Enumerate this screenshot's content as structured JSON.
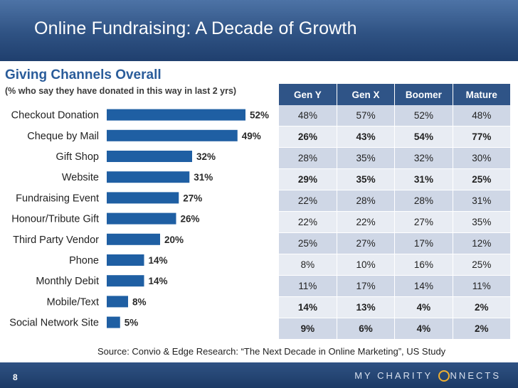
{
  "title": "Online Fundraising: A Decade of Growth",
  "subtitle": "Giving Channels Overall",
  "subnote": "(% who say they have donated in this way in last 2 yrs)",
  "source": "Source: Convio  & Edge Research: “The Next Decade in Online Marketing”, US Study",
  "page_number": "8",
  "logo": {
    "part1": "MY CHARITY",
    "part2": "NNECTS"
  },
  "colors": {
    "bar": "#1f5fa3",
    "header": "#2f5487",
    "title": "#2a5c9a"
  },
  "chart_data": {
    "type": "bar",
    "orientation": "horizontal",
    "title": "Giving Channels Overall",
    "categories": [
      "Checkout Donation",
      "Cheque by Mail",
      "Gift Shop",
      "Website",
      "Fundraising Event",
      "Honour/Tribute Gift",
      "Third Party Vendor",
      "Phone",
      "Monthly Debit",
      "Mobile/Text",
      "Social Network Site"
    ],
    "values": [
      52,
      49,
      32,
      31,
      27,
      26,
      20,
      14,
      14,
      8,
      5
    ],
    "value_labels": [
      "52%",
      "49%",
      "32%",
      "31%",
      "27%",
      "26%",
      "20%",
      "14%",
      "14%",
      "8%",
      "5%"
    ],
    "xlim": [
      0,
      52
    ],
    "unit": "%"
  },
  "table": {
    "headers": [
      "Gen Y",
      "Gen X",
      "Boomer",
      "Mature"
    ],
    "rows": [
      {
        "cells": [
          "48%",
          "57%",
          "52%",
          "48%"
        ],
        "bold": false
      },
      {
        "cells": [
          "26%",
          "43%",
          "54%",
          "77%"
        ],
        "bold": true
      },
      {
        "cells": [
          "28%",
          "35%",
          "32%",
          "30%"
        ],
        "bold": false
      },
      {
        "cells": [
          "29%",
          "35%",
          "31%",
          "25%"
        ],
        "bold": true
      },
      {
        "cells": [
          "22%",
          "28%",
          "28%",
          "31%"
        ],
        "bold": false
      },
      {
        "cells": [
          "22%",
          "22%",
          "27%",
          "35%"
        ],
        "bold": false
      },
      {
        "cells": [
          "25%",
          "27%",
          "17%",
          "12%"
        ],
        "bold": false
      },
      {
        "cells": [
          "8%",
          "10%",
          "16%",
          "25%"
        ],
        "bold": false
      },
      {
        "cells": [
          "11%",
          "17%",
          "14%",
          "11%"
        ],
        "bold": false
      },
      {
        "cells": [
          "14%",
          "13%",
          "4%",
          "2%"
        ],
        "bold": true
      },
      {
        "cells": [
          "9%",
          "6%",
          "4%",
          "2%"
        ],
        "bold": true
      }
    ]
  }
}
